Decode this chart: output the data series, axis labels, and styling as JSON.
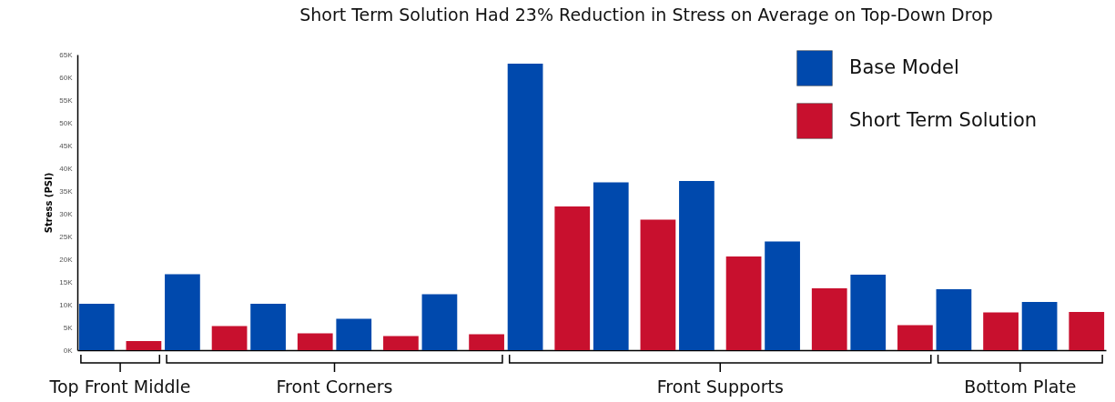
{
  "chart_data": {
    "type": "bar",
    "title": "Short Term Solution Had 23% Reduction in Stress on Average on Top-Down Drop",
    "ylabel": "Stress (PSI)",
    "categories": [
      null,
      null,
      null,
      null,
      null,
      null,
      null,
      null,
      null,
      null,
      null,
      null
    ],
    "series": [
      {
        "name": "Base Model",
        "color": "#0049ad",
        "values": [
          10200,
          16700,
          10200,
          6900,
          12300,
          63000,
          36900,
          37200,
          23900,
          16600,
          13400,
          10600
        ]
      },
      {
        "name": "Short Term Solution",
        "color": "#c8102e",
        "values": [
          2000,
          5300,
          3700,
          3100,
          3500,
          31600,
          28700,
          20600,
          13600,
          5500,
          8300,
          8400
        ]
      }
    ],
    "ylim": [
      0,
      65000
    ],
    "yticks": [
      {
        "value": 0,
        "label": "0K"
      },
      {
        "value": 5000,
        "label": "5K"
      },
      {
        "value": 10000,
        "label": "10K"
      },
      {
        "value": 15000,
        "label": "15K"
      },
      {
        "value": 20000,
        "label": "20K"
      },
      {
        "value": 25000,
        "label": "25K"
      },
      {
        "value": 30000,
        "label": "30K"
      },
      {
        "value": 35000,
        "label": "35K"
      },
      {
        "value": 40000,
        "label": "40K"
      },
      {
        "value": 45000,
        "label": "45K"
      },
      {
        "value": 50000,
        "label": "50K"
      },
      {
        "value": 55000,
        "label": "55K"
      },
      {
        "value": 60000,
        "label": "60K"
      },
      {
        "value": 65000,
        "label": "65K"
      }
    ],
    "annotations": [
      "Top Front Middle",
      "Front Corners",
      "Front Supports",
      "Bottom Plate"
    ],
    "legend": "top right",
    "grid": false
  }
}
